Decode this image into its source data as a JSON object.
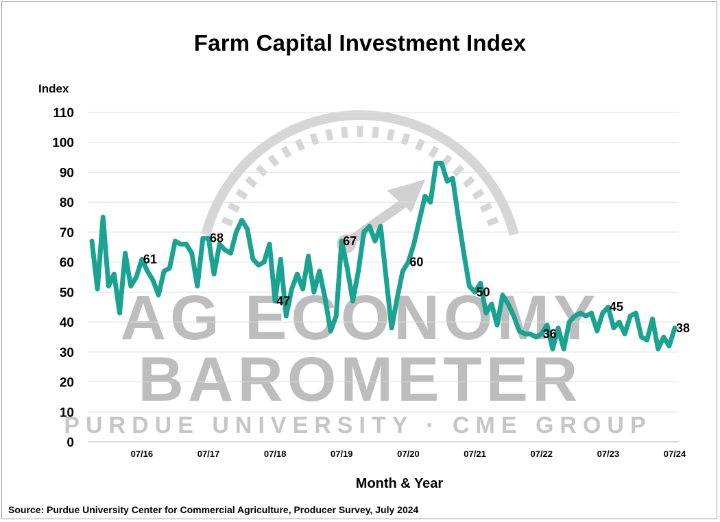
{
  "chart_data": {
    "type": "line",
    "title": "Farm Capital Investment Index",
    "ylabel": "Index",
    "xlabel": "Month & Year",
    "source": "Source: Purdue University Center for Commercial Agriculture, Producer Survey, July 2024",
    "ylim": [
      0,
      110
    ],
    "yticks": [
      0,
      10,
      20,
      30,
      40,
      50,
      60,
      70,
      80,
      90,
      100,
      110
    ],
    "grid": true,
    "x_start": "2015-10",
    "x_end": "2024-07",
    "xticks": [
      "07/16",
      "07/17",
      "07/18",
      "07/19",
      "07/20",
      "07/21",
      "07/22",
      "07/23",
      "07/24"
    ],
    "line_color": "#1aa391",
    "series": [
      {
        "points": [
          [
            "2015-10",
            67
          ],
          [
            "2015-11",
            51
          ],
          [
            "2015-12",
            75
          ],
          [
            "2016-01",
            52
          ],
          [
            "2016-02",
            56
          ],
          [
            "2016-03",
            43
          ],
          [
            "2016-04",
            63
          ],
          [
            "2016-05",
            52
          ],
          [
            "2016-06",
            55
          ],
          [
            "2016-07",
            61
          ],
          [
            "2016-08",
            57
          ],
          [
            "2016-09",
            54
          ],
          [
            "2016-10",
            49
          ],
          [
            "2016-11",
            57
          ],
          [
            "2016-12",
            58
          ],
          [
            "2017-01",
            67
          ],
          [
            "2017-02",
            66
          ],
          [
            "2017-03",
            66
          ],
          [
            "2017-04",
            63
          ],
          [
            "2017-05",
            52
          ],
          [
            "2017-06",
            68
          ],
          [
            "2017-07",
            68
          ],
          [
            "2017-08",
            56
          ],
          [
            "2017-09",
            66
          ],
          [
            "2017-10",
            64
          ],
          [
            "2017-11",
            63
          ],
          [
            "2017-12",
            70
          ],
          [
            "2018-01",
            74
          ],
          [
            "2018-02",
            71
          ],
          [
            "2018-03",
            61
          ],
          [
            "2018-04",
            59
          ],
          [
            "2018-05",
            60
          ],
          [
            "2018-06",
            66
          ],
          [
            "2018-07",
            47
          ],
          [
            "2018-08",
            61
          ],
          [
            "2018-09",
            42
          ],
          [
            "2018-10",
            51
          ],
          [
            "2018-11",
            56
          ],
          [
            "2018-12",
            51
          ],
          [
            "2019-01",
            62
          ],
          [
            "2019-02",
            50
          ],
          [
            "2019-03",
            57
          ],
          [
            "2019-04",
            48
          ],
          [
            "2019-05",
            37
          ],
          [
            "2019-06",
            42
          ],
          [
            "2019-07",
            67
          ],
          [
            "2019-08",
            58
          ],
          [
            "2019-09",
            47
          ],
          [
            "2019-10",
            57
          ],
          [
            "2019-11",
            70
          ],
          [
            "2019-12",
            72
          ],
          [
            "2020-01",
            67
          ],
          [
            "2020-02",
            72
          ],
          [
            "2020-03",
            55
          ],
          [
            "2020-04",
            38
          ],
          [
            "2020-05",
            48
          ],
          [
            "2020-06",
            57
          ],
          [
            "2020-07",
            60
          ],
          [
            "2020-08",
            66
          ],
          [
            "2020-09",
            74
          ],
          [
            "2020-10",
            82
          ],
          [
            "2020-11",
            80
          ],
          [
            "2020-12",
            93
          ],
          [
            "2021-01",
            93
          ],
          [
            "2021-02",
            87
          ],
          [
            "2021-03",
            88
          ],
          [
            "2021-04",
            75
          ],
          [
            "2021-05",
            63
          ],
          [
            "2021-06",
            52
          ],
          [
            "2021-07",
            50
          ],
          [
            "2021-08",
            53
          ],
          [
            "2021-09",
            43
          ],
          [
            "2021-10",
            46
          ],
          [
            "2021-11",
            39
          ],
          [
            "2021-12",
            49
          ],
          [
            "2022-01",
            46
          ],
          [
            "2022-02",
            42
          ],
          [
            "2022-03",
            37
          ],
          [
            "2022-04",
            36
          ],
          [
            "2022-05",
            36
          ],
          [
            "2022-06",
            35
          ],
          [
            "2022-07",
            36
          ],
          [
            "2022-08",
            39
          ],
          [
            "2022-09",
            31
          ],
          [
            "2022-10",
            38
          ],
          [
            "2022-11",
            31
          ],
          [
            "2022-12",
            40
          ],
          [
            "2023-01",
            42
          ],
          [
            "2023-02",
            43
          ],
          [
            "2023-03",
            42
          ],
          [
            "2023-04",
            43
          ],
          [
            "2023-05",
            37
          ],
          [
            "2023-06",
            43
          ],
          [
            "2023-07",
            45
          ],
          [
            "2023-08",
            38
          ],
          [
            "2023-09",
            40
          ],
          [
            "2023-10",
            36
          ],
          [
            "2023-11",
            42
          ],
          [
            "2023-12",
            43
          ],
          [
            "2024-01",
            35
          ],
          [
            "2024-02",
            34
          ],
          [
            "2024-03",
            41
          ],
          [
            "2024-04",
            31
          ],
          [
            "2024-05",
            35
          ],
          [
            "2024-06",
            32
          ],
          [
            "2024-07",
            38
          ]
        ]
      }
    ],
    "labeled_points": [
      {
        "x": "2016-07",
        "label": "61"
      },
      {
        "x": "2017-07",
        "label": "68"
      },
      {
        "x": "2018-07",
        "label": "47"
      },
      {
        "x": "2019-07",
        "label": "67"
      },
      {
        "x": "2020-07",
        "label": "60"
      },
      {
        "x": "2021-07",
        "label": "50"
      },
      {
        "x": "2022-07",
        "label": "36"
      },
      {
        "x": "2023-07",
        "label": "45"
      },
      {
        "x": "2024-07",
        "label": "38"
      }
    ]
  },
  "watermark": {
    "line1": "AG ECONOMY",
    "line2": "BAROMETER",
    "line3": "PURDUE UNIVERSITY · CME GROUP"
  }
}
